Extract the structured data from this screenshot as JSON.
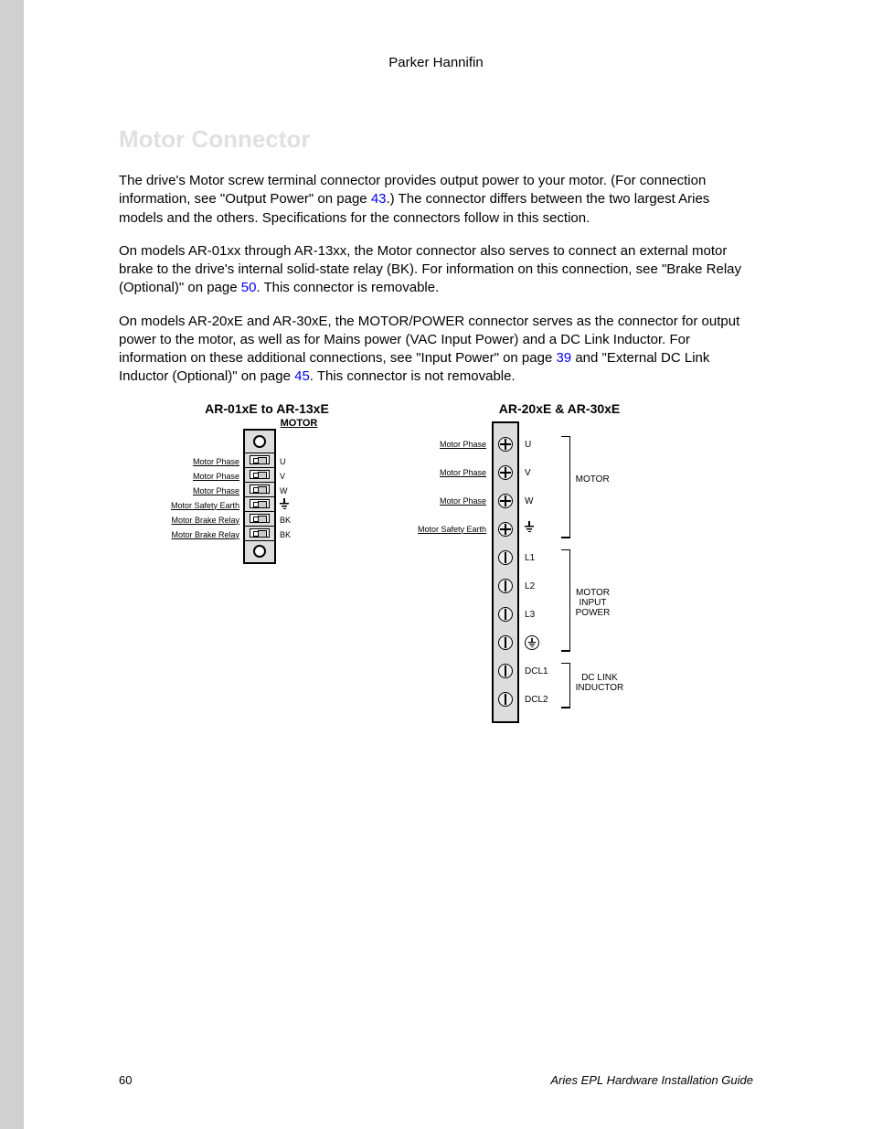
{
  "header": {
    "company": "Parker Hannifin"
  },
  "section_title": "Motor Connector",
  "paragraphs": {
    "p1a": "The drive's Motor screw terminal connector provides output power to your motor. (For connection information, see \"Output Power\" on page ",
    "p1_link1": "43",
    "p1b": ".) The connector differs between the two largest Aries models and the others. Specifications for the connectors follow in this section.",
    "p2a": "On models AR-01xx through AR-13xx, the Motor connector also serves to connect an external motor brake to the drive's internal solid-state relay (BK). For information on this connection, see \"Brake Relay (Optional)\" on page ",
    "p2_link1": "50",
    "p2b": ". This connector is removable.",
    "p3a": "On models AR-20xE and AR-30xE, the M",
    "p3_sc1": "OTOR",
    "p3b": "/P",
    "p3_sc2": "OWER",
    "p3c": " connector serves as the connector for output power to the motor, as well as for Mains power (VAC Input Power) and a DC Link Inductor. For information on these additional connections, see \"Input Power\" on page ",
    "p3_link1": "39",
    "p3d": " and \"External DC Link Inductor (Optional)\" on page ",
    "p3_link2": "45",
    "p3e": ". This connector is not removable."
  },
  "diagram_left": {
    "title": "AR-01xE to AR-13xE",
    "subtitle": "MOTOR",
    "rows": [
      {
        "label": "Motor Phase",
        "pin": "U"
      },
      {
        "label": "Motor Phase",
        "pin": "V"
      },
      {
        "label": "Motor Phase",
        "pin": "W"
      },
      {
        "label": "Motor Safety Earth",
        "pin": "EARTH"
      },
      {
        "label": "Motor Brake Relay",
        "pin": "BK"
      },
      {
        "label": "Motor Brake Relay",
        "pin": "BK"
      }
    ],
    "colors": {
      "body": "#dddddd",
      "border": "#000000"
    }
  },
  "diagram_right": {
    "title": "AR-20xE & AR-30xE",
    "rows": [
      {
        "label": "Motor Phase",
        "pin": "U",
        "screw": "plus"
      },
      {
        "label": "Motor Phase",
        "pin": "V",
        "screw": "plus"
      },
      {
        "label": "Motor Phase",
        "pin": "W",
        "screw": "plus"
      },
      {
        "label": "Motor Safety Earth",
        "pin": "EARTH",
        "screw": "plus"
      },
      {
        "label": "",
        "pin": "L1",
        "screw": "slot"
      },
      {
        "label": "",
        "pin": "L2",
        "screw": "slot"
      },
      {
        "label": "",
        "pin": "L3",
        "screw": "slot"
      },
      {
        "label": "",
        "pin": "EARTH_CIRCLE",
        "screw": "slot"
      },
      {
        "label": "",
        "pin": "DCL1",
        "screw": "slot"
      },
      {
        "label": "",
        "pin": "DCL2",
        "screw": "slot"
      }
    ],
    "groups": [
      {
        "label": "MOTOR",
        "from": 0,
        "to": 3
      },
      {
        "label": "MOTOR\nINPUT\nPOWER",
        "from": 4,
        "to": 7
      },
      {
        "label": "DC LINK\nINDUCTOR",
        "from": 8,
        "to": 9
      }
    ],
    "colors": {
      "body": "#dddddd",
      "border": "#000000"
    }
  },
  "footer": {
    "page": "60",
    "title": "Aries EPL Hardware Installation Guide"
  }
}
